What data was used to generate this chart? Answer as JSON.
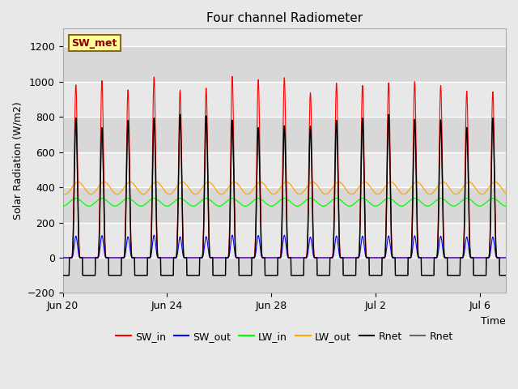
{
  "title": "Four channel Radiometer",
  "xlabel": "Time",
  "ylabel": "Solar Radiation (W/m2)",
  "annotation_text": "SW_met",
  "annotation_color": "#8B0000",
  "annotation_bg": "#FFFF99",
  "annotation_border": "#8B6914",
  "ylim": [
    -200,
    1300
  ],
  "yticks": [
    -200,
    0,
    200,
    400,
    600,
    800,
    1000,
    1200
  ],
  "fig_bg": "#E8E8E8",
  "plot_bg": "#DCDCDC",
  "legend_entries": [
    "SW_in",
    "SW_out",
    "LW_in",
    "LW_out",
    "Rnet",
    "Rnet"
  ],
  "legend_colors": [
    "red",
    "blue",
    "lime",
    "orange",
    "black",
    "#666666"
  ],
  "n_days": 18,
  "SW_in_peak": 1000,
  "SW_out_peak": 125,
  "LW_in_base": 315,
  "LW_in_amp": 22,
  "LW_out_base": 395,
  "LW_out_amp": 35,
  "Rnet_day_peak": 800,
  "Rnet_night": -100,
  "xtick_positions": [
    0,
    96,
    192,
    288,
    384
  ],
  "xtick_labels": [
    "Jun 20",
    "Jun 24",
    "Jun 28",
    "Jul 2",
    "Jul 6"
  ],
  "xlim_end": 408
}
